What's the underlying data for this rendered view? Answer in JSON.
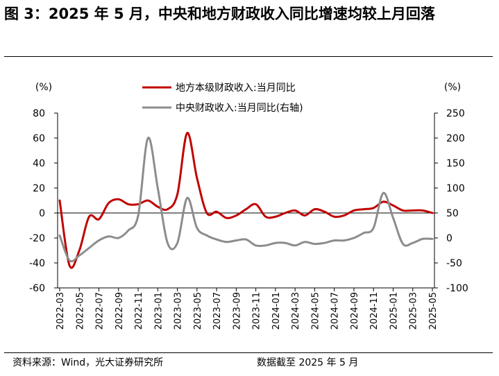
{
  "figure": {
    "title": "图 3：2025 年 5 月，中央和地方财政收入同比增速均较上月回落",
    "source": "资料来源：Wind，光大证券研究所",
    "date_note": "数据截至 2025 年 5 月"
  },
  "chart_data": {
    "type": "line",
    "left_axis": {
      "unit": "(%)",
      "ylim": [
        -60,
        80
      ],
      "ticks": [
        80,
        60,
        40,
        20,
        0,
        -20,
        -40,
        -60
      ]
    },
    "right_axis": {
      "unit": "(%)",
      "ylim": [
        -100,
        250
      ],
      "ticks": [
        250,
        200,
        150,
        100,
        50,
        0,
        -50,
        -100
      ]
    },
    "x_tick_labels": [
      "2022-03",
      "2022-05",
      "2022-07",
      "2022-09",
      "2022-11",
      "2023-01",
      "2023-03",
      "2023-05",
      "2023-07",
      "2023-09",
      "2023-11",
      "2024-01",
      "2024-03",
      "2024-05",
      "2024-07",
      "2024-09",
      "2024-11",
      "2025-01",
      "2025-03",
      "2025-05"
    ],
    "x": [
      "2022-03",
      "2022-04",
      "2022-05",
      "2022-06",
      "2022-07",
      "2022-08",
      "2022-09",
      "2022-10",
      "2022-11",
      "2022-12",
      "2023-01",
      "2023-02",
      "2023-03",
      "2023-04",
      "2023-05",
      "2023-06",
      "2023-07",
      "2023-08",
      "2023-09",
      "2023-10",
      "2023-11",
      "2023-12",
      "2024-01",
      "2024-02",
      "2024-03",
      "2024-04",
      "2024-05",
      "2024-06",
      "2024-07",
      "2024-08",
      "2024-09",
      "2024-10",
      "2024-11",
      "2024-12",
      "2025-01",
      "2025-02",
      "2025-03",
      "2025-04",
      "2025-05"
    ],
    "legend_position": "top-center",
    "grid": false,
    "series": [
      {
        "name": "地方本级财政收入:当月同比",
        "axis": "left",
        "color": "#c00000",
        "values": [
          10,
          -42,
          -30,
          -3,
          -5,
          8,
          11,
          7,
          7,
          10,
          5,
          3,
          15,
          64,
          28,
          0,
          1,
          -4,
          -2,
          3,
          7,
          -3,
          -3,
          0,
          2,
          -2,
          3,
          1,
          -3,
          -2,
          2,
          3,
          4,
          9,
          6,
          2,
          2,
          2,
          0
        ]
      },
      {
        "name": "中央财政收入:当月同比(右轴)",
        "axis": "right",
        "color": "#8c8c8c",
        "values": [
          5,
          -45,
          -35,
          -20,
          -5,
          3,
          0,
          15,
          45,
          200,
          100,
          -10,
          -10,
          80,
          20,
          5,
          -3,
          -8,
          -5,
          -3,
          -15,
          -15,
          -10,
          -10,
          -15,
          -8,
          -12,
          -10,
          -5,
          -5,
          0,
          10,
          20,
          90,
          40,
          -12,
          -10,
          -2,
          -2
        ]
      }
    ]
  }
}
